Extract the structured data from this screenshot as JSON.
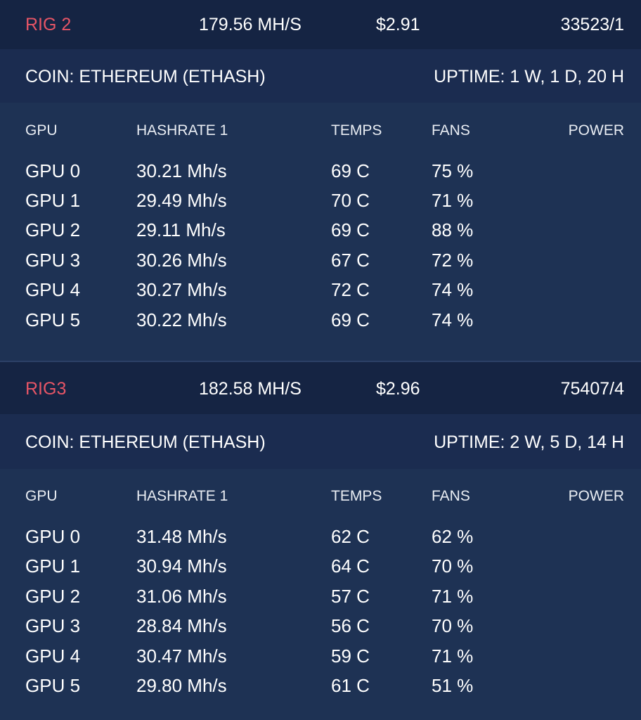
{
  "rigs": [
    {
      "name": "RIG 2",
      "hashrate": "179.56 MH/S",
      "profit": "$2.91",
      "shares": "33523/1",
      "coin": "COIN: ETHEREUM (ETHASH)",
      "uptime": "UPTIME: 1 W, 1 D, 20 H",
      "columns": [
        "GPU",
        "HASHRATE 1",
        "TEMPS",
        "FANS",
        "POWER"
      ],
      "gpus": [
        {
          "gpu": "GPU 0",
          "hashrate": "30.21 Mh/s",
          "temp": "69 C",
          "fan": "75 %"
        },
        {
          "gpu": "GPU 1",
          "hashrate": "29.49 Mh/s",
          "temp": "70 C",
          "fan": "71 %"
        },
        {
          "gpu": "GPU 2",
          "hashrate": "29.11 Mh/s",
          "temp": "69 C",
          "fan": "88 %"
        },
        {
          "gpu": "GPU 3",
          "hashrate": "30.26 Mh/s",
          "temp": "67 C",
          "fan": "72 %"
        },
        {
          "gpu": "GPU 4",
          "hashrate": "30.27 Mh/s",
          "temp": "72 C",
          "fan": "74 %"
        },
        {
          "gpu": "GPU 5",
          "hashrate": "30.22 Mh/s",
          "temp": "69 C",
          "fan": "74 %"
        }
      ]
    },
    {
      "name": "RIG3",
      "hashrate": "182.58 MH/S",
      "profit": "$2.96",
      "shares": "75407/4",
      "coin": "COIN: ETHEREUM (ETHASH)",
      "uptime": "UPTIME: 2 W, 5 D, 14 H",
      "columns": [
        "GPU",
        "HASHRATE 1",
        "TEMPS",
        "FANS",
        "POWER"
      ],
      "gpus": [
        {
          "gpu": "GPU 0",
          "hashrate": "31.48 Mh/s",
          "temp": "62 C",
          "fan": "62 %"
        },
        {
          "gpu": "GPU 1",
          "hashrate": "30.94 Mh/s",
          "temp": "64 C",
          "fan": "70 %"
        },
        {
          "gpu": "GPU 2",
          "hashrate": "31.06 Mh/s",
          "temp": "57 C",
          "fan": "71 %"
        },
        {
          "gpu": "GPU 3",
          "hashrate": "28.84 Mh/s",
          "temp": "56 C",
          "fan": "70 %"
        },
        {
          "gpu": "GPU 4",
          "hashrate": "30.47 Mh/s",
          "temp": "59 C",
          "fan": "71 %"
        },
        {
          "gpu": "GPU 5",
          "hashrate": "29.80 Mh/s",
          "temp": "61 C",
          "fan": "51 %"
        }
      ]
    }
  ]
}
